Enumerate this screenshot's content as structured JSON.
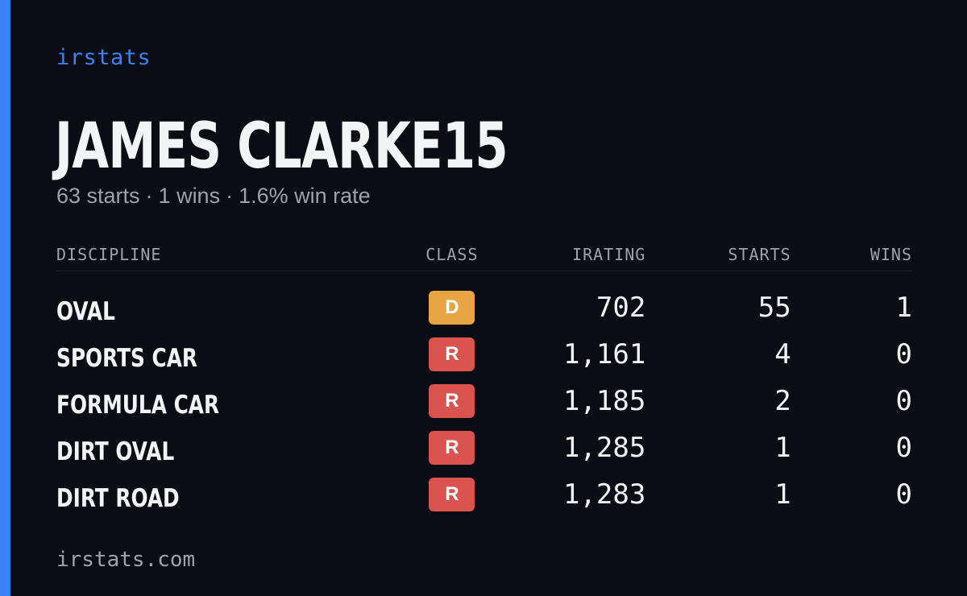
{
  "brand": "irstats",
  "driver": {
    "name": "JAMES CLARKE15",
    "summary": {
      "starts": "63 starts",
      "wins": "1 wins",
      "win_rate": "1.6% win rate",
      "separator": "·"
    }
  },
  "table": {
    "headers": {
      "discipline": "DISCIPLINE",
      "class": "CLASS",
      "irating": "IRATING",
      "starts": "STARTS",
      "wins": "WINS"
    },
    "rows": [
      {
        "discipline": "OVAL",
        "class": "D",
        "class_color": "#e8a544",
        "irating": "702",
        "starts": "55",
        "wins": "1"
      },
      {
        "discipline": "SPORTS CAR",
        "class": "R",
        "class_color": "#d9534f",
        "irating": "1,161",
        "starts": "4",
        "wins": "0"
      },
      {
        "discipline": "FORMULA CAR",
        "class": "R",
        "class_color": "#d9534f",
        "irating": "1,185",
        "starts": "2",
        "wins": "0"
      },
      {
        "discipline": "DIRT OVAL",
        "class": "R",
        "class_color": "#d9534f",
        "irating": "1,285",
        "starts": "1",
        "wins": "0"
      },
      {
        "discipline": "DIRT ROAD",
        "class": "R",
        "class_color": "#d9534f",
        "irating": "1,283",
        "starts": "1",
        "wins": "0"
      }
    ]
  },
  "footer": "irstats.com",
  "colors": {
    "background": "#0a0d14",
    "accent": "#3b82f6",
    "text": "#f3f4f6",
    "muted": "#9ca3af"
  }
}
